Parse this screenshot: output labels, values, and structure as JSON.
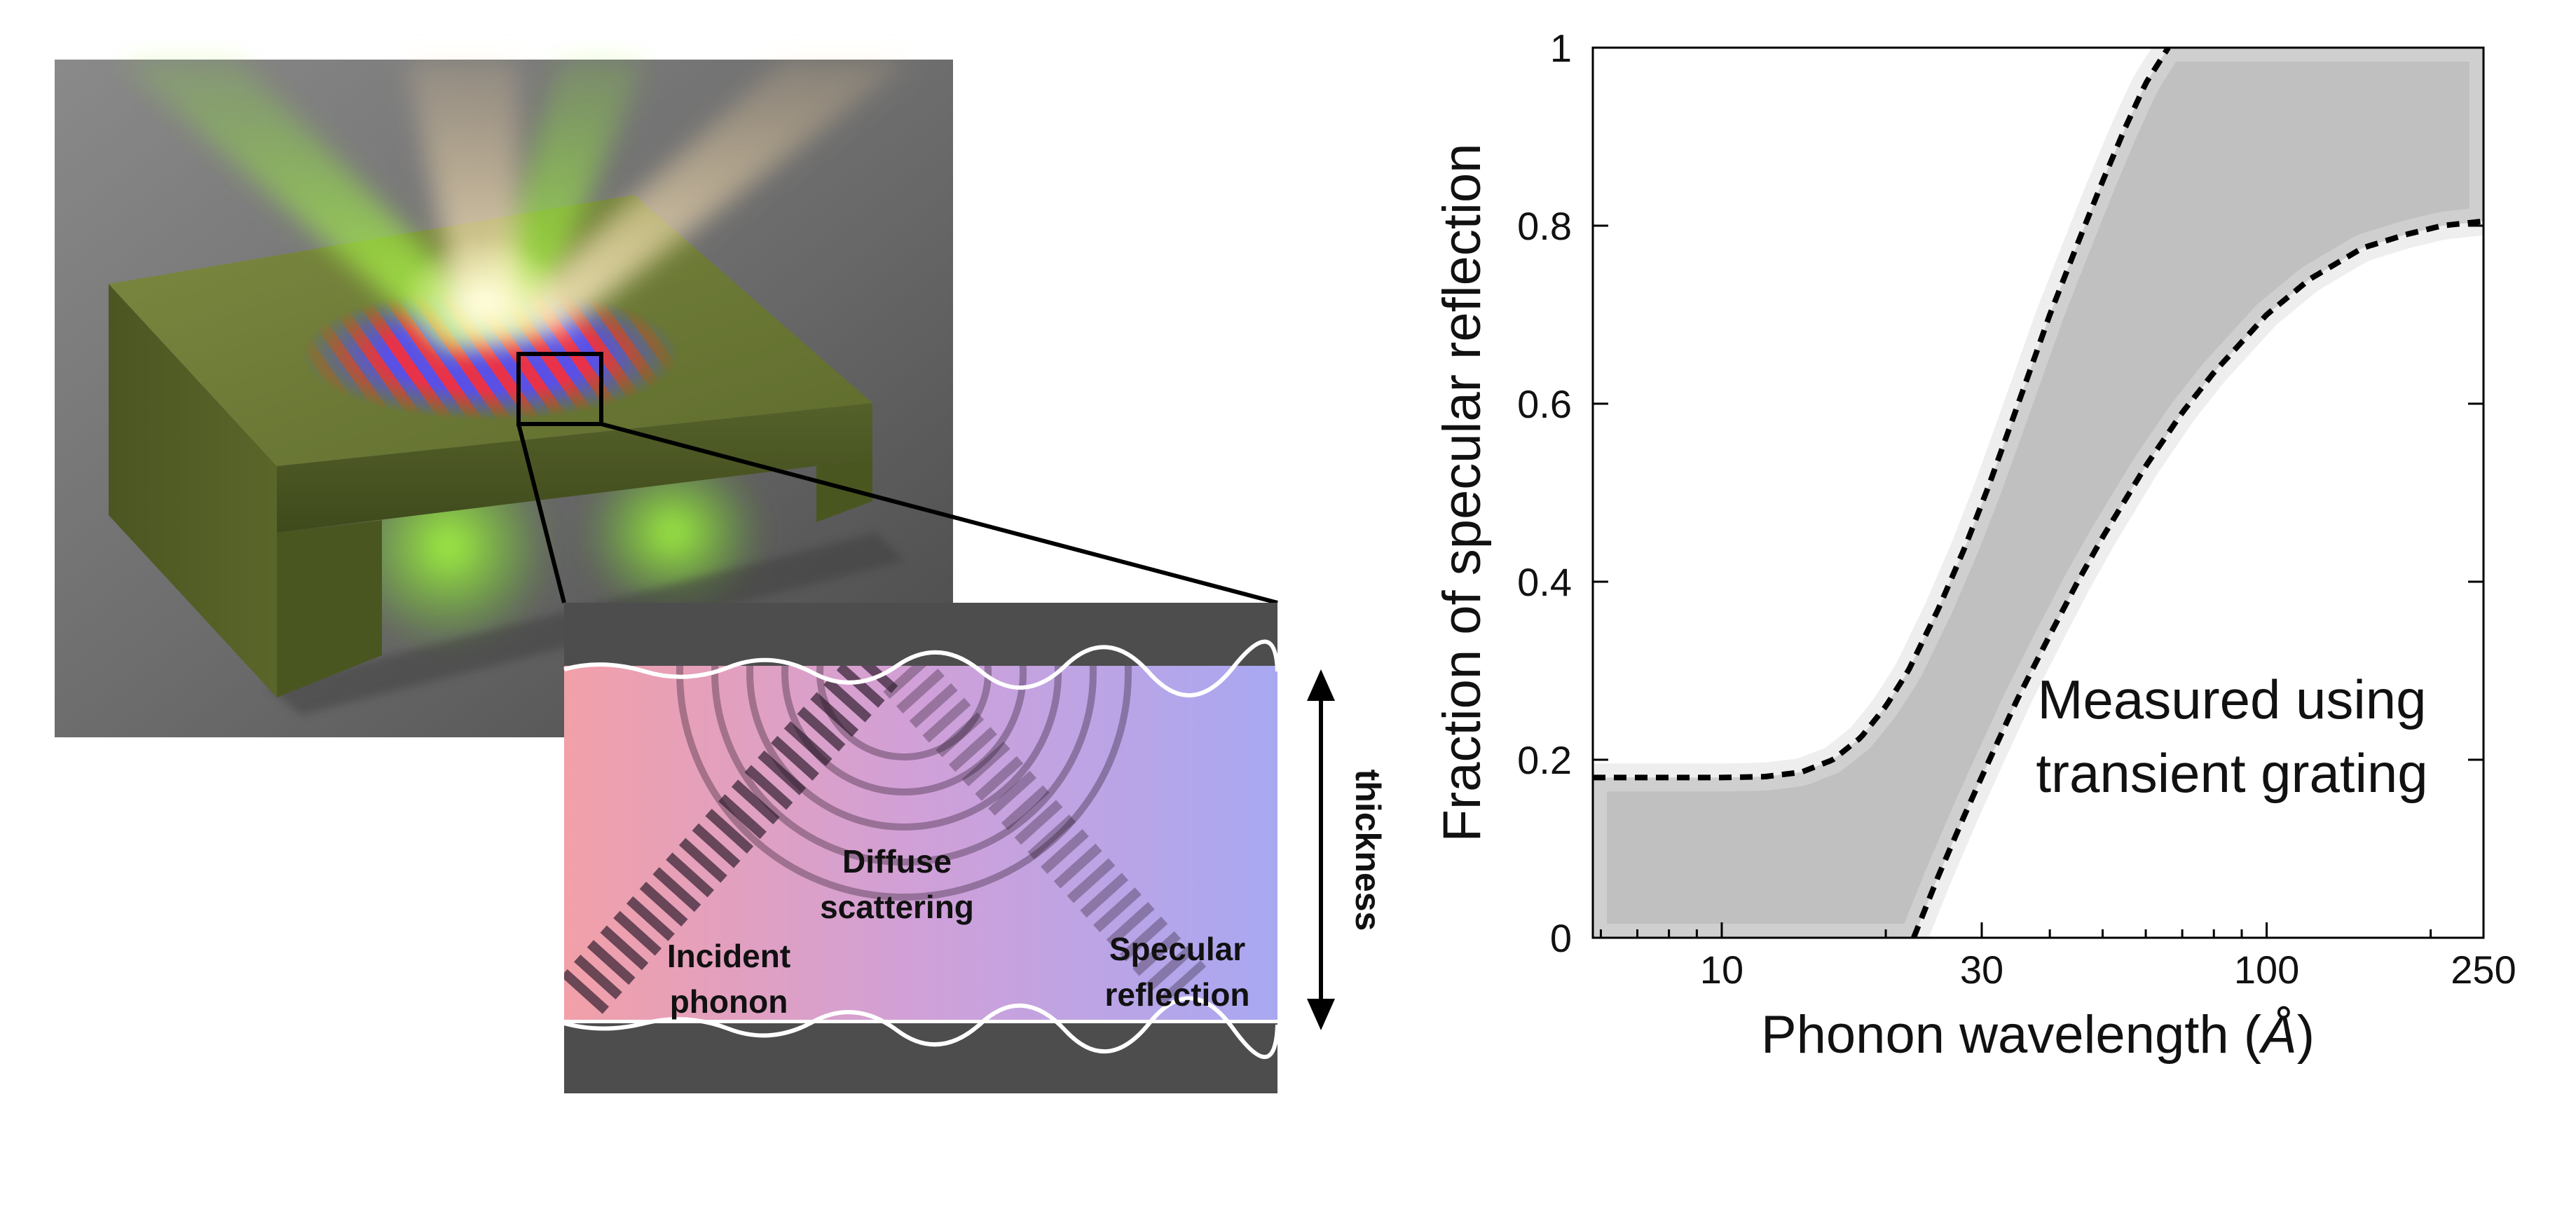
{
  "illustration": {
    "inset_labels": {
      "incident": [
        "Incident",
        "phonon"
      ],
      "diffuse": [
        "Diffuse",
        "scattering"
      ],
      "specular": [
        "Specular",
        "reflection"
      ],
      "thickness": "thickness"
    },
    "colors": {
      "membrane": "#6b7a38",
      "beam_green": "#8cf030",
      "beam_peach": "#ffd9a0",
      "grating_red": "#e8324a",
      "grating_blue": "#5a50e6",
      "inset_left": "#f2a0a8",
      "inset_right": "#a8a8f2",
      "inset_border": "#4d4d4d"
    }
  },
  "chart_data": {
    "type": "area",
    "xlabel_main": "Phonon wavelength (",
    "xlabel_unit": "Å",
    "xlabel_end": ")",
    "ylabel": "Fraction of specular reflection",
    "xscale": "log",
    "xlim": [
      5.8,
      250
    ],
    "ylim": [
      0,
      1
    ],
    "xticks": [
      10,
      30,
      100,
      250
    ],
    "yticks": [
      0,
      0.2,
      0.4,
      0.6,
      0.8,
      1
    ],
    "ytick_labels": [
      "0",
      "0.2",
      "0.4",
      "0.6",
      "0.8",
      "1"
    ],
    "annotation": [
      "Measured using",
      "transient grating"
    ],
    "grid": false,
    "band_color": "#bdbdbd",
    "band_lower_color": "#000000",
    "upper_curve": {
      "x": [
        5.8,
        8,
        10,
        12,
        14,
        16,
        18,
        20,
        22,
        25,
        28,
        31,
        35,
        40,
        45,
        50,
        55,
        60,
        66
      ],
      "y": [
        0.18,
        0.18,
        0.18,
        0.181,
        0.186,
        0.2,
        0.225,
        0.26,
        0.3,
        0.37,
        0.44,
        0.51,
        0.6,
        0.7,
        0.78,
        0.85,
        0.91,
        0.96,
        1.0
      ]
    },
    "lower_curve": {
      "x": [
        22.5,
        25,
        28,
        31,
        35,
        40,
        45,
        50,
        60,
        70,
        80,
        100,
        120,
        150,
        180,
        210,
        250
      ],
      "y": [
        0.0,
        0.07,
        0.14,
        0.2,
        0.27,
        0.34,
        0.4,
        0.45,
        0.53,
        0.59,
        0.635,
        0.7,
        0.74,
        0.775,
        0.79,
        0.8,
        0.805
      ]
    }
  }
}
